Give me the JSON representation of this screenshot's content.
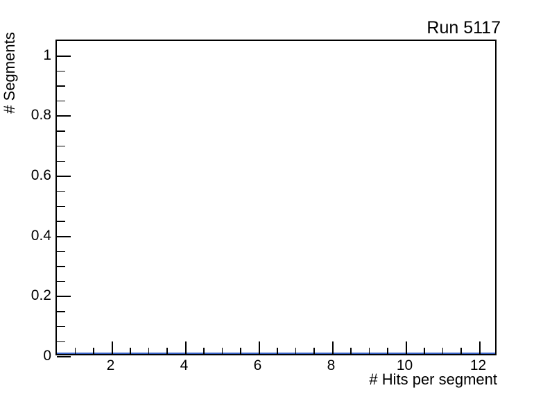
{
  "title": {
    "text": "Run 5117"
  },
  "axes": {
    "x": {
      "title": "# Hits per segment",
      "min": 0.5,
      "max": 12.5,
      "major_ticks": [
        2,
        4,
        6,
        8,
        10,
        12
      ],
      "major_labels": [
        "2",
        "4",
        "6",
        "8",
        "10",
        "12"
      ],
      "minor_step": 0.5
    },
    "y": {
      "title": "# Segments",
      "min": 0,
      "max": 1.05,
      "major_ticks": [
        0,
        0.2,
        0.4,
        0.6,
        0.8,
        1
      ],
      "major_labels": [
        "0",
        "0.2",
        "0.4",
        "0.6",
        "0.8",
        "1"
      ],
      "minor_step": 0.05
    }
  },
  "colors": {
    "histogram_line": "#3a64c8",
    "axis_line": "#000000",
    "text": "#000000",
    "background": "#ffffff"
  },
  "chart_data": {
    "type": "bar",
    "title": "Run 5117",
    "xlabel": "# Hits per segment",
    "ylabel": "# Segments",
    "xlim": [
      0.5,
      12.5
    ],
    "ylim": [
      0,
      1.05
    ],
    "x_major_ticks": [
      2,
      4,
      6,
      8,
      10,
      12
    ],
    "y_major_ticks": [
      0,
      0.2,
      0.4,
      0.6,
      0.8,
      1
    ],
    "categories": [
      1,
      2,
      3,
      4,
      5,
      6,
      7,
      8,
      9,
      10,
      11,
      12
    ],
    "values": [
      0,
      0,
      0,
      0,
      0,
      0,
      0,
      0,
      0,
      0,
      0,
      0
    ],
    "series_color": "#3a64c8",
    "grid": false,
    "legend": false,
    "note": "Empty histogram frame; blue histogram line drawn flat at y=0 across full x range"
  }
}
